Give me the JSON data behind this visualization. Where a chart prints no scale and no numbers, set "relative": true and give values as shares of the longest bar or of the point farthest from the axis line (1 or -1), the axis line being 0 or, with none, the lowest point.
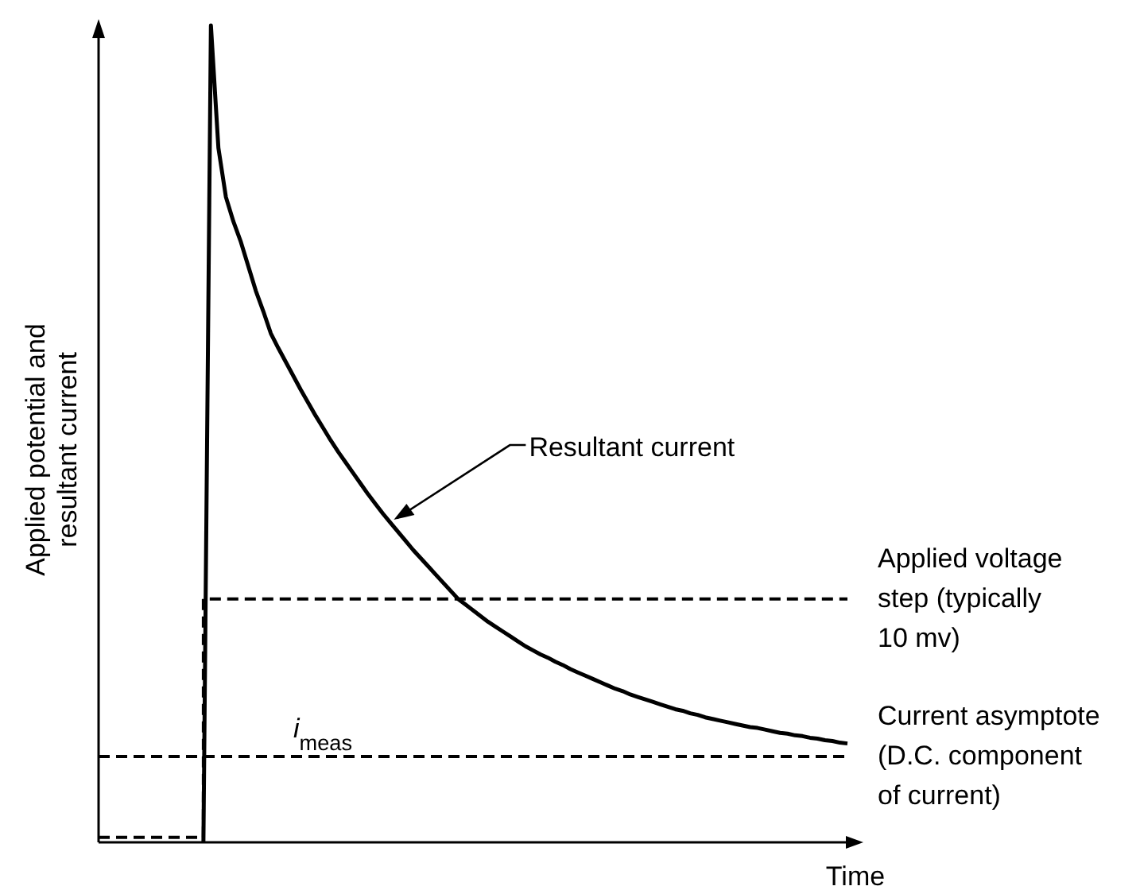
{
  "chart_data": {
    "type": "line",
    "relative": true,
    "xlabel": "Time",
    "ylabel": "Applied potential and resultant current",
    "legend": false,
    "annotations": [
      "Resultant current",
      "i$_{meas}$"
    ],
    "categories": [
      null,
      null,
      null,
      null,
      null,
      null,
      null,
      null,
      null,
      null,
      null,
      null,
      null,
      null,
      null,
      null,
      null,
      null,
      null,
      null,
      null,
      null,
      null,
      null,
      null,
      null,
      null,
      null,
      null,
      null,
      null,
      null,
      null,
      null,
      null,
      null,
      null,
      null,
      null,
      null,
      null,
      null,
      null,
      null,
      null,
      null,
      null,
      null,
      null,
      null,
      null,
      null,
      null,
      null,
      null,
      null,
      null,
      null,
      null,
      null,
      null,
      null,
      null,
      null,
      null,
      null,
      null,
      null,
      null,
      null,
      null,
      null,
      null,
      null,
      null,
      null,
      null,
      null,
      null,
      null,
      null,
      null,
      null,
      null,
      null,
      null,
      null,
      null,
      null,
      null,
      null,
      null,
      null,
      null,
      null,
      null,
      null,
      null,
      null,
      null,
      null
    ],
    "series": [
      {
        "name": "Applied voltage step (typically 10 mv)",
        "type": "step",
        "color": "#000000",
        "line_style": "dashed",
        "values": [
          0.006,
          0.006,
          0.006,
          0.006,
          0.006,
          0.006,
          0.006,
          0.006,
          0.006,
          0.006,
          0.006,
          0.006,
          0.006,
          0.006,
          0.298,
          0.298,
          0.298,
          0.298,
          0.298,
          0.298,
          0.298,
          0.298,
          0.298,
          0.298,
          0.298,
          0.298,
          0.298,
          0.298,
          0.298,
          0.298,
          0.298,
          0.298,
          0.298,
          0.298,
          0.298,
          0.298,
          0.298,
          0.298,
          0.298,
          0.298,
          0.298,
          0.298,
          0.298,
          0.298,
          0.298,
          0.298,
          0.298,
          0.298,
          0.298,
          0.298,
          0.298,
          0.298,
          0.298,
          0.298,
          0.298,
          0.298,
          0.298,
          0.298,
          0.298,
          0.298,
          0.298,
          0.298,
          0.298,
          0.298,
          0.298,
          0.298,
          0.298,
          0.298,
          0.298,
          0.298,
          0.298,
          0.298,
          0.298,
          0.298,
          0.298,
          0.298,
          0.298,
          0.298,
          0.298,
          0.298,
          0.298,
          0.298,
          0.298,
          0.298,
          0.298,
          0.298,
          0.298,
          0.298,
          0.298,
          0.298,
          0.298,
          0.298,
          0.298,
          0.298,
          0.298,
          0.298,
          0.298,
          0.298,
          0.298,
          0.298,
          0.298
        ]
      },
      {
        "name": "Current asymptote (D.C. component of current)",
        "color": "#000000",
        "line_style": "dashed",
        "values": [
          0.105,
          0.105,
          0.105,
          0.105,
          0.105,
          0.105,
          0.105,
          0.105,
          0.105,
          0.105,
          0.105,
          0.105,
          0.105,
          0.105,
          0.105,
          0.105,
          0.105,
          0.105,
          0.105,
          0.105,
          0.105,
          0.105,
          0.105,
          0.105,
          0.105,
          0.105,
          0.105,
          0.105,
          0.105,
          0.105,
          0.105,
          0.105,
          0.105,
          0.105,
          0.105,
          0.105,
          0.105,
          0.105,
          0.105,
          0.105,
          0.105,
          0.105,
          0.105,
          0.105,
          0.105,
          0.105,
          0.105,
          0.105,
          0.105,
          0.105,
          0.105,
          0.105,
          0.105,
          0.105,
          0.105,
          0.105,
          0.105,
          0.105,
          0.105,
          0.105,
          0.105,
          0.105,
          0.105,
          0.105,
          0.105,
          0.105,
          0.105,
          0.105,
          0.105,
          0.105,
          0.105,
          0.105,
          0.105,
          0.105,
          0.105,
          0.105,
          0.105,
          0.105,
          0.105,
          0.105,
          0.105,
          0.105,
          0.105,
          0.105,
          0.105,
          0.105,
          0.105,
          0.105,
          0.105,
          0.105,
          0.105,
          0.105,
          0.105,
          0.105,
          0.105,
          0.105,
          0.105,
          0.105,
          0.105,
          0.105,
          0.105
        ]
      },
      {
        "color": "#000000",
        "line_style": "solid",
        "values": [
          null,
          null,
          null,
          null,
          null,
          null,
          null,
          null,
          null,
          null,
          null,
          null,
          null,
          null,
          0,
          1,
          0.85,
          0.79,
          0.76,
          0.735,
          0.705,
          0.675,
          0.65,
          0.623,
          0.605,
          0.588,
          0.571,
          0.554,
          0.538,
          0.522,
          0.507,
          0.492,
          0.478,
          0.465,
          0.452,
          0.439,
          0.426,
          0.414,
          0.402,
          0.391,
          0.38,
          0.369,
          0.358,
          0.348,
          0.338,
          0.328,
          0.318,
          0.308,
          0.298,
          0.291,
          0.284,
          0.277,
          0.27,
          0.264,
          0.258,
          0.252,
          0.246,
          0.24,
          0.235,
          0.23,
          0.226,
          0.221,
          0.217,
          0.212,
          0.208,
          0.204,
          0.2,
          0.196,
          0.192,
          0.188,
          0.185,
          0.181,
          0.178,
          0.175,
          0.172,
          0.169,
          0.166,
          0.163,
          0.161,
          0.158,
          0.156,
          0.153,
          0.151,
          0.149,
          0.147,
          0.145,
          0.143,
          0.141,
          0.14,
          0.138,
          0.136,
          0.134,
          0.133,
          0.131,
          0.13,
          0.128,
          0.127,
          0.125,
          0.124,
          0.122,
          0.121
        ]
      }
    ]
  }
}
